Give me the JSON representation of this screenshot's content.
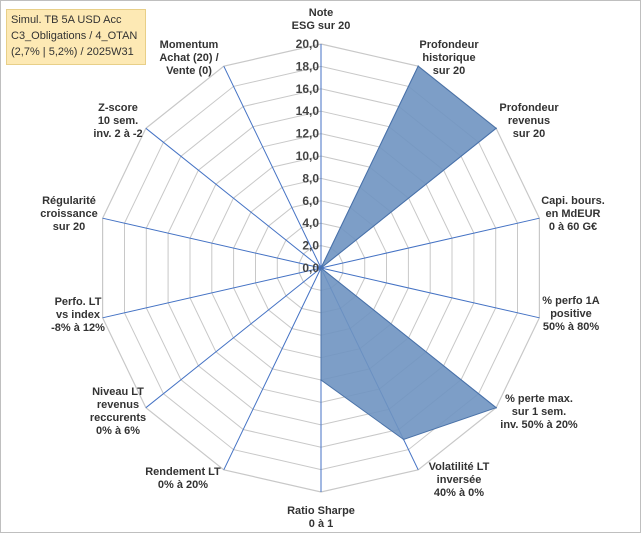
{
  "info_box": {
    "line1": "Simul. TB 5A USD Acc",
    "line2": "C3_Obligations / 4_OTAN",
    "line3": "(2,7% | 5,2%) / 2025W31"
  },
  "chart_data": {
    "type": "radar",
    "rmax": 20,
    "ticks": [
      "0,0",
      "2,0",
      "4,0",
      "6,0",
      "8,0",
      "10,0",
      "12,0",
      "14,0",
      "16,0",
      "18,0",
      "20,0"
    ],
    "axes": [
      {
        "label": [
          "Note",
          "ESG sur 20"
        ],
        "value": 0
      },
      {
        "label": [
          "Profondeur",
          "historique",
          "sur 20"
        ],
        "value": 20
      },
      {
        "label": [
          "Profondeur",
          "revenus",
          "sur 20"
        ],
        "value": 20
      },
      {
        "label": [
          "Capi. bours.",
          "en MdEUR",
          "0 à 60 G€"
        ],
        "value": 0
      },
      {
        "label": [
          "% perfo 1A",
          "positive",
          "50% à 80%"
        ],
        "value": 0
      },
      {
        "label": [
          "% perte max.",
          "sur 1 sem.",
          "inv. 50% à 20%"
        ],
        "value": 20
      },
      {
        "label": [
          "Volatilité LT",
          "inversée",
          "40% à 0%"
        ],
        "value": 17
      },
      {
        "label": [
          "Ratio Sharpe",
          "0 à 1"
        ],
        "value": 10
      },
      {
        "label": [
          "Rendement LT",
          "0% à 20%"
        ],
        "value": 0
      },
      {
        "label": [
          "Niveau LT",
          "revenus",
          "reccurents",
          "0% à 6%"
        ],
        "value": 0
      },
      {
        "label": [
          "Perfo. LT",
          "vs index",
          "-8% à 12%"
        ],
        "value": 0
      },
      {
        "label": [
          "Régularité",
          "croissance",
          "sur 20"
        ],
        "value": 0
      },
      {
        "label": [
          "Z-score",
          "10 sem.",
          "inv. 2 à -2"
        ],
        "value": 0
      },
      {
        "label": [
          "Momentum",
          "Achat (20) /",
          "Vente (0)"
        ],
        "value": 0
      }
    ],
    "colors": {
      "fill": "#6f93c1",
      "stroke": "#4a72a8",
      "axis": "#4472c4",
      "grid": "#c8c8c8"
    }
  }
}
